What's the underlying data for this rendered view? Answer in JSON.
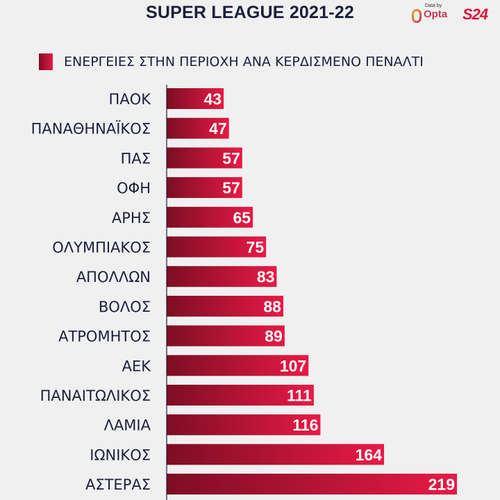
{
  "header": {
    "title": "SUPER LEAGUE 2021-22",
    "data_by": "Data by",
    "opta": "Opta",
    "s24": "S24"
  },
  "colors": {
    "bar_start": "#7d0d24",
    "bar_end": "#e81a45",
    "text": "#1b1f3b",
    "background": "#f0f0f0"
  },
  "chart_data": {
    "type": "bar",
    "orientation": "horizontal",
    "title": "SUPER LEAGUE 2021-22",
    "legend": "ΕΝΕΡΓΕΙΕΣ ΣΤΗΝ ΠΕΡΙΟΧΗ ΑΝΑ ΚΕΡΔΙΣΜΕΝΟ ΠΕΝΑΛΤΙ",
    "legend_position": "top",
    "categories": [
      "ΠΑΟΚ",
      "ΠΑΝΑΘΗΝΑΪΚΟΣ",
      "ΠΑΣ",
      "ΟΦΗ",
      "ΑΡΗΣ",
      "ΟΛΥΜΠΙΑΚΟΣ",
      "ΑΠΟΛΛΩΝ",
      "ΒΟΛΟΣ",
      "ΑΤΡΟΜΗΤΟΣ",
      "ΑΕΚ",
      "ΠΑΝΑΙΤΩΛΙΚΟΣ",
      "ΛΑΜΙΑ",
      "ΙΩΝΙΚΟΣ",
      "ΑΣΤΕΡΑΣ"
    ],
    "values": [
      43,
      47,
      57,
      57,
      65,
      75,
      83,
      88,
      89,
      107,
      111,
      116,
      164,
      219
    ],
    "xlim": [
      0,
      219
    ],
    "grid": false
  }
}
